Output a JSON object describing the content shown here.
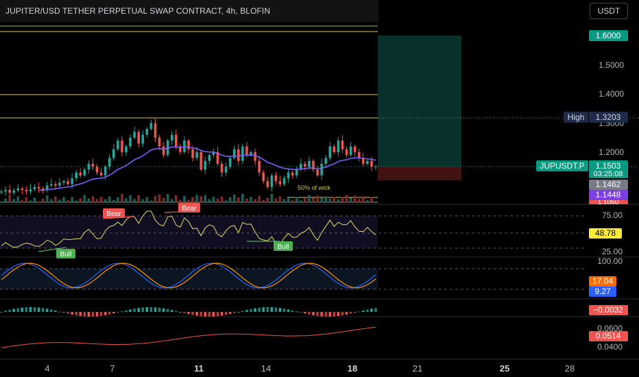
{
  "title": "JUPITER/USD TETHER PERPETUAL SWAP CONTRACT, 4h, BLOFIN",
  "currency": "USDT",
  "symbol": "JUPUSDT.P",
  "colors": {
    "bull": "#26a69a",
    "bear": "#ef5350",
    "yellow_line": "#d4c64a",
    "green_line": "#7cc472",
    "ma_line": "#7b61ff",
    "rsi_line": "#e6df6a",
    "stoch_k": "#2962ff",
    "stoch_d": "#ff9800"
  },
  "price_axis": {
    "ticks": [
      "1.5000",
      "1.4000",
      "1.3000",
      "1.2000"
    ],
    "target_label": "1.6000",
    "high_label": "High",
    "high_value": "1.3203",
    "last_price": "1.1503",
    "countdown": "03:25:08",
    "level_1": "1.1462",
    "level_2": "1.1448",
    "level_3": "1.1050"
  },
  "annotations": {
    "wick": "50% of wick"
  },
  "rsi": {
    "ticks": [
      "75.00",
      "25.00"
    ],
    "value": "48.78",
    "labels": [
      "Bear",
      "Bear",
      "Bull",
      "Bull"
    ]
  },
  "stoch": {
    "ticks": [
      "100.00"
    ],
    "k_value": "17.04",
    "d_value": "9.27"
  },
  "macd": {
    "value": "−0.0032"
  },
  "osc": {
    "ticks": [
      "0.0600",
      "0.0400"
    ],
    "value": "0.0514"
  },
  "time_axis": [
    "4",
    "7",
    "11",
    "14",
    "18",
    "21",
    "25",
    "28"
  ],
  "chart_data": {
    "type": "candlestick",
    "timeframe": "4h",
    "last_price": 1.1503,
    "high": 1.3203,
    "target": 1.6,
    "closes": [
      1.065,
      1.07,
      1.06,
      1.068,
      1.075,
      1.07,
      1.065,
      1.072,
      1.08,
      1.075,
      1.07,
      1.085,
      1.09,
      1.085,
      1.095,
      1.1,
      1.09,
      1.11,
      1.13,
      1.12,
      1.14,
      1.16,
      1.15,
      1.13,
      1.12,
      1.15,
      1.18,
      1.21,
      1.24,
      1.2,
      1.22,
      1.25,
      1.27,
      1.23,
      1.26,
      1.28,
      1.3,
      1.25,
      1.22,
      1.19,
      1.24,
      1.26,
      1.22,
      1.2,
      1.24,
      1.21,
      1.18,
      1.2,
      1.14,
      1.17,
      1.19,
      1.2,
      1.16,
      1.13,
      1.15,
      1.18,
      1.21,
      1.17,
      1.22,
      1.19,
      1.2,
      1.17,
      1.13,
      1.1,
      1.08,
      1.12,
      1.1,
      1.09,
      1.11,
      1.13,
      1.12,
      1.14,
      1.16,
      1.15,
      1.17,
      1.14,
      1.12,
      1.16,
      1.18,
      1.22,
      1.2,
      1.24,
      1.21,
      1.19,
      1.22,
      1.2,
      1.18,
      1.16,
      1.17,
      1.15,
      1.1503
    ]
  }
}
